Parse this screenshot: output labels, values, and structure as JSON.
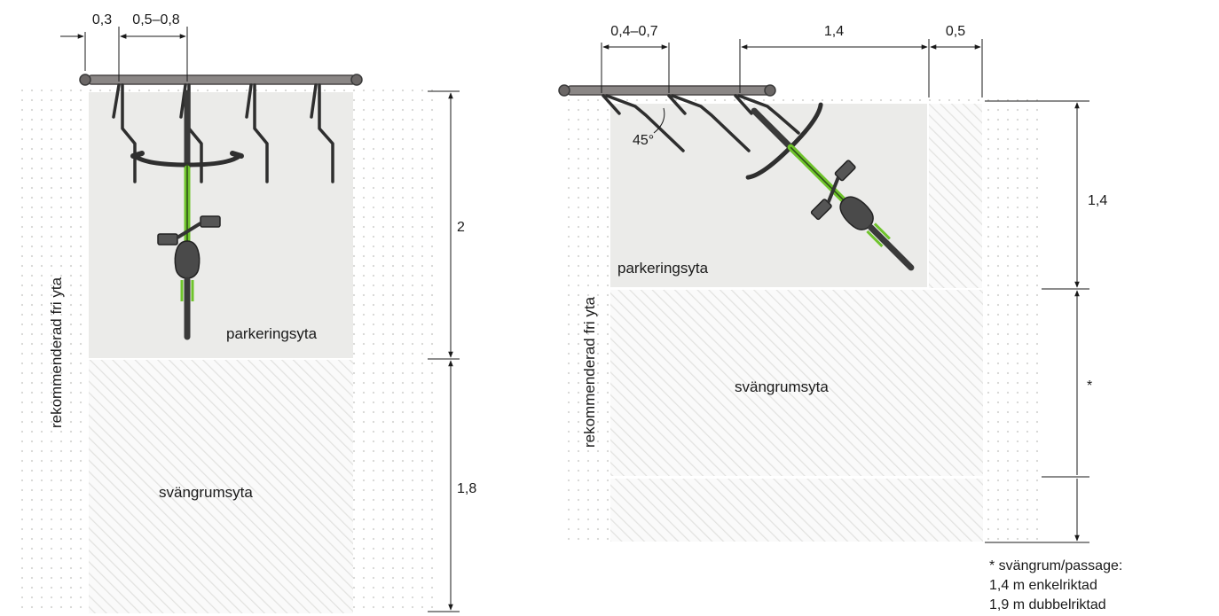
{
  "left": {
    "dimensions": {
      "offset": "0,3",
      "spacing": "0,5–0,8",
      "parking_depth": "2",
      "turning_depth": "1,8"
    },
    "parking_label": "parkeringsyta",
    "turning_label": "svängrumsyta",
    "free_area_label": "rekommenderad fri yta"
  },
  "right": {
    "dimensions": {
      "spacing": "0,4–0,7",
      "depth_along_rail": "1,4",
      "offset": "0,5",
      "parking_depth": "1,4",
      "turning_marker": "*"
    },
    "angle": "45°",
    "parking_label": "parkeringsyta",
    "turning_label": "svängrumsyta",
    "free_area_label": "rekommenderad fri yta"
  },
  "footnote": {
    "line1": "* svängrum/passage:",
    "line2": "1,4 m enkelriktad",
    "line3": "1,9 m dubbelriktad"
  },
  "colors": {
    "parking_fill": "#ebebe9",
    "hatch_line": "#e0e0de",
    "dot_pattern": "#d6d6d4",
    "rail": "#8a8685",
    "bike_frame": "#6fc42c",
    "bike_dark": "#3a3a3a",
    "dimension_line": "#1a1a1a"
  },
  "icons": [
    "bicycle-top-view",
    "wall-mounted-bike-rack"
  ]
}
